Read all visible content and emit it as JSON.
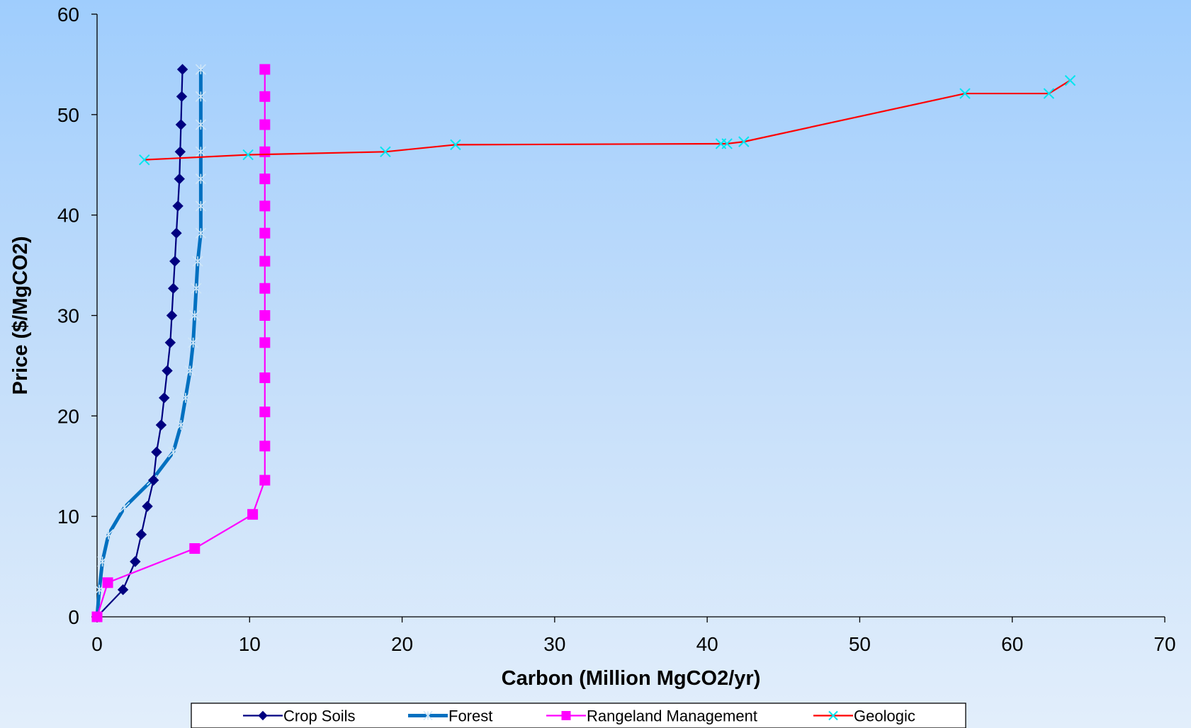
{
  "chart_data": {
    "type": "line",
    "title": "",
    "xlabel": "Carbon (Million MgCO2/yr)",
    "ylabel": "Price ($/MgCO2)",
    "xlim": [
      0,
      70
    ],
    "ylim": [
      0,
      60
    ],
    "x_ticks": [
      0,
      10,
      20,
      30,
      40,
      50,
      60,
      70
    ],
    "y_ticks": [
      0,
      10,
      20,
      30,
      40,
      50,
      60
    ],
    "grid": false,
    "legend_position": "bottom",
    "series": [
      {
        "name": "Crop Soils",
        "color": "#000080",
        "marker": "diamond",
        "points": [
          [
            0,
            0
          ],
          [
            1.7,
            2.7
          ],
          [
            2.5,
            5.5
          ],
          [
            2.9,
            8.2
          ],
          [
            3.3,
            11.0
          ],
          [
            3.7,
            13.6
          ],
          [
            3.9,
            16.4
          ],
          [
            4.2,
            19.1
          ],
          [
            4.4,
            21.8
          ],
          [
            4.6,
            24.5
          ],
          [
            4.8,
            27.3
          ],
          [
            4.9,
            30.0
          ],
          [
            5.0,
            32.7
          ],
          [
            5.1,
            35.4
          ],
          [
            5.2,
            38.2
          ],
          [
            5.3,
            40.9
          ],
          [
            5.4,
            43.6
          ],
          [
            5.45,
            46.3
          ],
          [
            5.5,
            49.0
          ],
          [
            5.55,
            51.8
          ],
          [
            5.6,
            54.5
          ]
        ]
      },
      {
        "name": "Forest",
        "color": "#0070c0",
        "marker": "star",
        "points": [
          [
            0,
            0
          ],
          [
            0.15,
            2.7
          ],
          [
            0.35,
            5.5
          ],
          [
            0.75,
            8.2
          ],
          [
            1.8,
            10.9
          ],
          [
            3.6,
            13.6
          ],
          [
            5.0,
            16.4
          ],
          [
            5.5,
            19.1
          ],
          [
            5.8,
            21.8
          ],
          [
            6.1,
            24.5
          ],
          [
            6.3,
            27.3
          ],
          [
            6.4,
            30.0
          ],
          [
            6.5,
            32.7
          ],
          [
            6.6,
            35.4
          ],
          [
            6.8,
            38.2
          ],
          [
            6.8,
            40.9
          ],
          [
            6.8,
            43.6
          ],
          [
            6.8,
            46.3
          ],
          [
            6.8,
            49.0
          ],
          [
            6.8,
            51.8
          ],
          [
            6.8,
            54.5
          ]
        ]
      },
      {
        "name": "Rangeland Management",
        "color": "#ff00ff",
        "marker": "square",
        "points": [
          [
            0,
            0
          ],
          [
            0.7,
            3.4
          ],
          [
            6.4,
            6.8
          ],
          [
            10.2,
            10.2
          ],
          [
            11.0,
            13.6
          ],
          [
            11.0,
            17.0
          ],
          [
            11.0,
            20.4
          ],
          [
            11.0,
            23.8
          ],
          [
            11.0,
            27.3
          ],
          [
            11.0,
            30.0
          ],
          [
            11.0,
            32.7
          ],
          [
            11.0,
            35.4
          ],
          [
            11.0,
            38.2
          ],
          [
            11.0,
            40.9
          ],
          [
            11.0,
            43.6
          ],
          [
            11.0,
            46.3
          ],
          [
            11.0,
            49.0
          ],
          [
            11.0,
            51.8
          ],
          [
            11.0,
            54.5
          ]
        ]
      },
      {
        "name": "Geologic",
        "color": "#ff0000",
        "marker": "x",
        "marker_color": "#00e5ee",
        "points": [
          [
            3.1,
            45.5
          ],
          [
            9.9,
            46.0
          ],
          [
            18.9,
            46.3
          ],
          [
            23.5,
            47.0
          ],
          [
            40.9,
            47.1
          ],
          [
            41.3,
            47.1
          ],
          [
            42.4,
            47.3
          ],
          [
            56.9,
            52.1
          ],
          [
            62.4,
            52.1
          ],
          [
            63.8,
            53.4
          ]
        ]
      }
    ]
  }
}
